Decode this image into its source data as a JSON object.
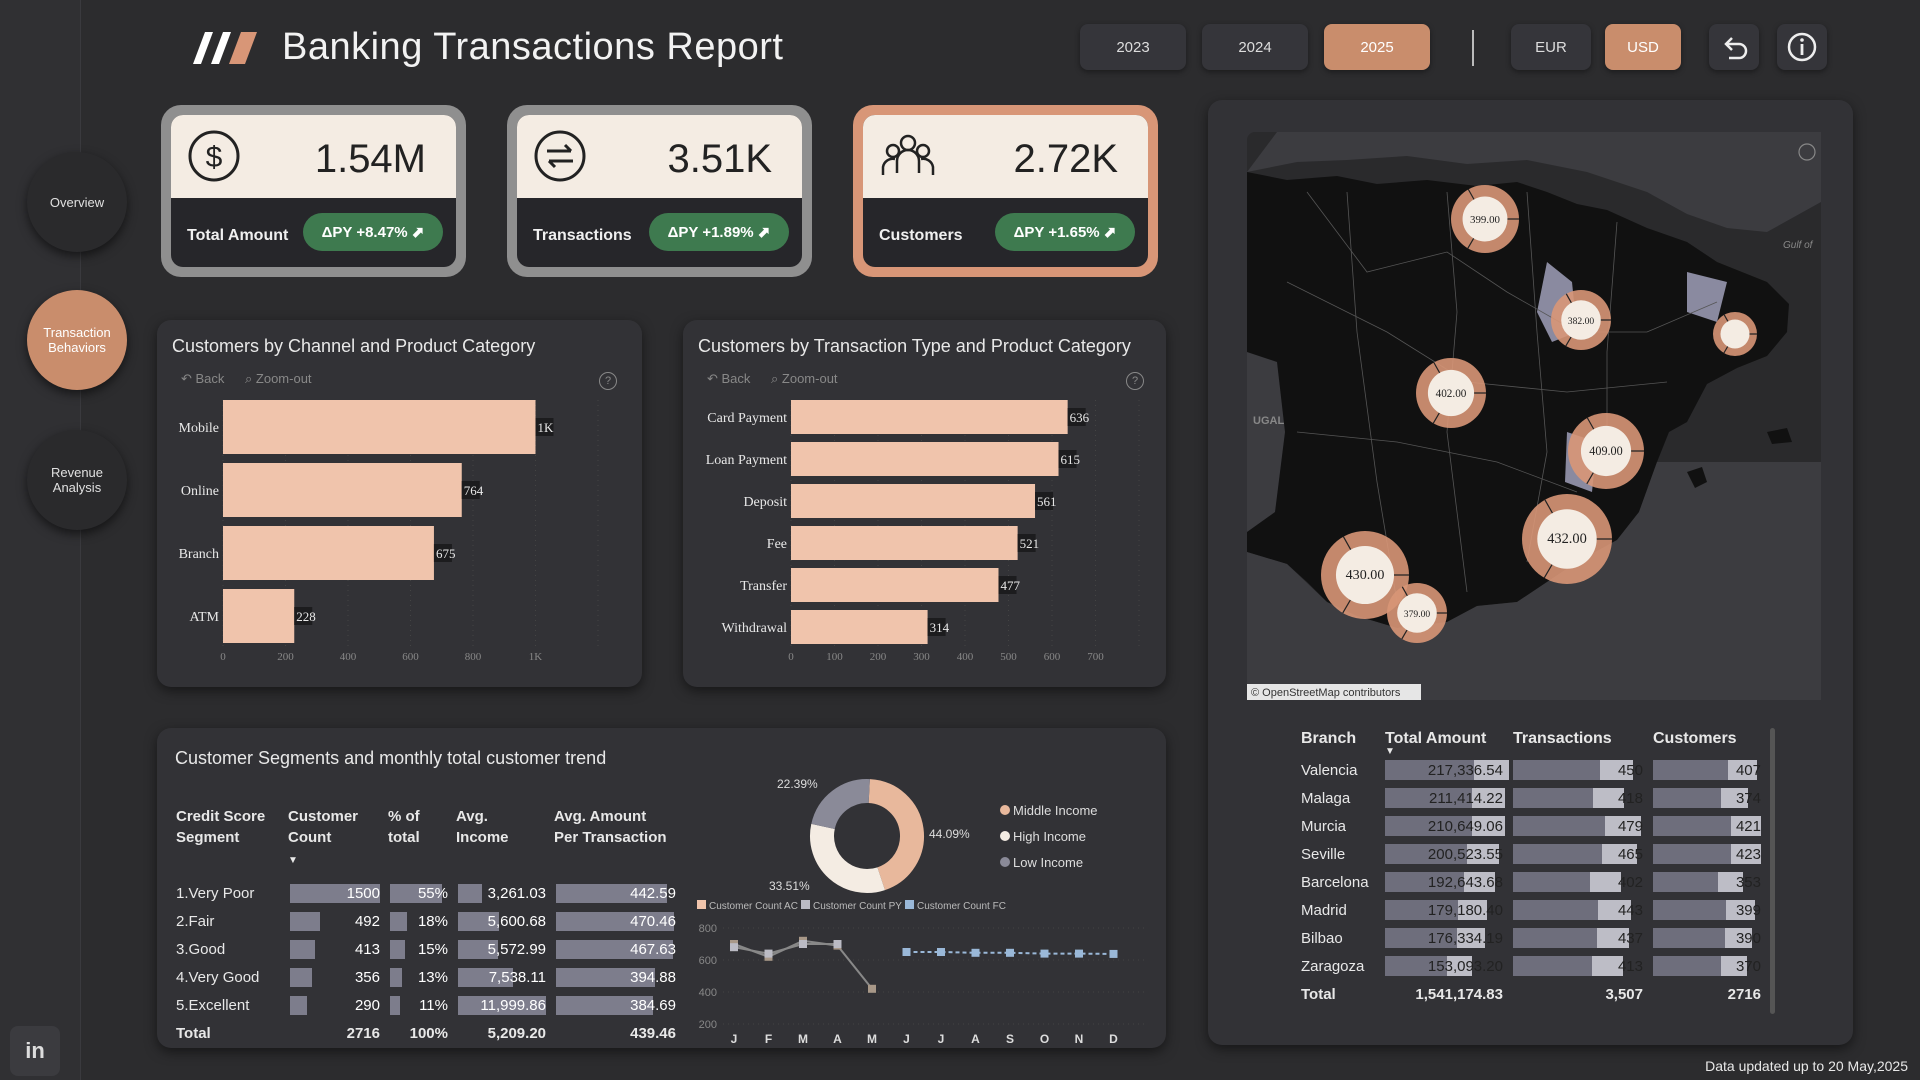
{
  "nav": {
    "overview": "Overview",
    "behaviors": "Transaction Behaviors",
    "revenue": "Revenue Analysis",
    "linkedin": "in"
  },
  "header": {
    "title": "Banking Transactions Report",
    "years": [
      "2023",
      "2024",
      "2025"
    ],
    "selected_year": "2025",
    "currencies": [
      "EUR",
      "USD"
    ],
    "selected_currency": "USD"
  },
  "kpis": [
    {
      "value": "1.54M",
      "label": "Total Amount",
      "badge": "ΔPY +8.47% ⬈",
      "icon": "dollar-icon"
    },
    {
      "value": "3.51K",
      "label": "Transactions",
      "badge": "ΔPY +1.89% ⬈",
      "icon": "exchange-icon"
    },
    {
      "value": "2.72K",
      "label": "Customers",
      "badge": "ΔPY +1.65% ⬈",
      "icon": "people-icon"
    }
  ],
  "tools": {
    "back": "Back",
    "zoom_out": "Zoom-out",
    "help": "?"
  },
  "chart_data": [
    {
      "type": "bar",
      "title": "Customers by Channel and Product Category",
      "categories": [
        "Mobile",
        "Online",
        "Branch",
        "ATM"
      ],
      "values": [
        1000,
        764,
        675,
        228
      ],
      "data_labels": [
        "1K",
        "764",
        "675",
        "228"
      ],
      "xticks": [
        "0",
        "200",
        "400",
        "600",
        "800",
        "1K"
      ],
      "xlim": [
        0,
        1200
      ]
    },
    {
      "type": "bar",
      "title": "Customers by Transaction Type and Product Category",
      "categories": [
        "Card Payment",
        "Loan Payment",
        "Deposit",
        "Fee",
        "Transfer",
        "Withdrawal"
      ],
      "values": [
        636,
        615,
        561,
        521,
        477,
        314
      ],
      "data_labels": [
        "636",
        "615",
        "561",
        "521",
        "477",
        "314"
      ],
      "xticks": [
        "0",
        "100",
        "200",
        "300",
        "400",
        "500",
        "600",
        "700"
      ],
      "xlim": [
        0,
        800
      ]
    },
    {
      "type": "pie",
      "title": "",
      "labels": [
        "Middle Income",
        "High Income",
        "Low Income"
      ],
      "values": [
        44.09,
        33.51,
        22.39
      ],
      "data_labels": [
        "44.09%",
        "33.51%",
        "22.39%"
      ],
      "colors": [
        "#e8b89c",
        "#f4ece3",
        "#8a8a98"
      ]
    },
    {
      "type": "line",
      "title": "",
      "x": [
        "J",
        "F",
        "M",
        "A",
        "M",
        "J",
        "J",
        "A",
        "S",
        "O",
        "N",
        "D"
      ],
      "yticks": [
        "800",
        "600",
        "400",
        "200"
      ],
      "ylim": [
        200,
        800
      ],
      "series": [
        {
          "name": "Customer Count AC",
          "values": [
            700,
            620,
            720,
            690,
            420,
            null,
            null,
            null,
            null,
            null,
            null,
            null
          ]
        },
        {
          "name": "Customer Count PY",
          "values": [
            680,
            640,
            700,
            700,
            null,
            null,
            null,
            null,
            null,
            null,
            null,
            null
          ]
        },
        {
          "name": "Customer Count FC",
          "values": [
            null,
            null,
            null,
            null,
            null,
            650,
            650,
            645,
            645,
            640,
            640,
            638
          ]
        }
      ]
    }
  ],
  "segments": {
    "title": "Customer Segments and monthly total customer trend",
    "headers": [
      "Credit Score Segment",
      "Customer Count",
      "% of total",
      "Avg. Income",
      "Avg. Amount Per Transaction"
    ],
    "rows": [
      {
        "name": "1.Very Poor",
        "count": "1500",
        "count_frac": 1.0,
        "pct": "55%",
        "pct_frac": 1.0,
        "income": "3,261.03",
        "income_frac": 0.27,
        "avg": "442.59",
        "avg_frac": 0.94
      },
      {
        "name": "2.Fair",
        "count": "492",
        "count_frac": 0.33,
        "pct": "18%",
        "pct_frac": 0.33,
        "income": "5,600.68",
        "income_frac": 0.47,
        "avg": "470.46",
        "avg_frac": 1.0
      },
      {
        "name": "3.Good",
        "count": "413",
        "count_frac": 0.28,
        "pct": "15%",
        "pct_frac": 0.28,
        "income": "5,572.99",
        "income_frac": 0.46,
        "avg": "467.63",
        "avg_frac": 0.99
      },
      {
        "name": "4.Very Good",
        "count": "356",
        "count_frac": 0.24,
        "pct": "13%",
        "pct_frac": 0.24,
        "income": "7,538.11",
        "income_frac": 0.63,
        "avg": "394.88",
        "avg_frac": 0.84
      },
      {
        "name": "5.Excellent",
        "count": "290",
        "count_frac": 0.19,
        "pct": "11%",
        "pct_frac": 0.2,
        "income": "11,999.86",
        "income_frac": 1.0,
        "avg": "384.69",
        "avg_frac": 0.82
      }
    ],
    "total": {
      "name": "Total",
      "count": "2716",
      "pct": "100%",
      "income": "5,209.20",
      "avg": "439.46"
    }
  },
  "map": {
    "attribution": "© OpenStreetMap contributors",
    "labels": [
      "399.00",
      "382.00",
      "402.00",
      "409.00",
      "432.00",
      "430.00",
      "379.00"
    ],
    "region_labels": [
      "UGAL",
      "Gulf of"
    ]
  },
  "branches": {
    "headers": [
      "Branch",
      "Total Amount",
      "Transactions",
      "Customers"
    ],
    "rows": [
      {
        "name": "Valencia",
        "amount": "217,336.54",
        "amount_frac": 1.0,
        "tx": "450",
        "tx_frac": 0.94,
        "cust": "407",
        "cust_frac": 0.96
      },
      {
        "name": "Malaga",
        "amount": "211,414.22",
        "amount_frac": 0.97,
        "tx": "418",
        "tx_frac": 0.87,
        "cust": "374",
        "cust_frac": 0.88
      },
      {
        "name": "Murcia",
        "amount": "210,649.06",
        "amount_frac": 0.97,
        "tx": "479",
        "tx_frac": 1.0,
        "cust": "421",
        "cust_frac": 1.0
      },
      {
        "name": "Seville",
        "amount": "200,523.55",
        "amount_frac": 0.92,
        "tx": "465",
        "tx_frac": 0.97,
        "cust": "423",
        "cust_frac": 1.0
      },
      {
        "name": "Barcelona",
        "amount": "192,643.68",
        "amount_frac": 0.89,
        "tx": "402",
        "tx_frac": 0.84,
        "cust": "353",
        "cust_frac": 0.83
      },
      {
        "name": "Madrid",
        "amount": "179,180.40",
        "amount_frac": 0.82,
        "tx": "443",
        "tx_frac": 0.92,
        "cust": "399",
        "cust_frac": 0.94
      },
      {
        "name": "Bilbao",
        "amount": "176,334.19",
        "amount_frac": 0.81,
        "tx": "437",
        "tx_frac": 0.91,
        "cust": "390",
        "cust_frac": 0.92
      },
      {
        "name": "Zaragoza",
        "amount": "153,093.20",
        "amount_frac": 0.7,
        "tx": "413",
        "tx_frac": 0.86,
        "cust": "370",
        "cust_frac": 0.87
      }
    ],
    "total": {
      "name": "Total",
      "amount": "1,541,174.83",
      "tx": "3,507",
      "cust": "2716"
    }
  },
  "footer": "Data updated up to 20 May,2025",
  "colors": {
    "accent": "#c98d6c",
    "bar": "#f0c4ac",
    "badge": "#3e7a4f"
  }
}
